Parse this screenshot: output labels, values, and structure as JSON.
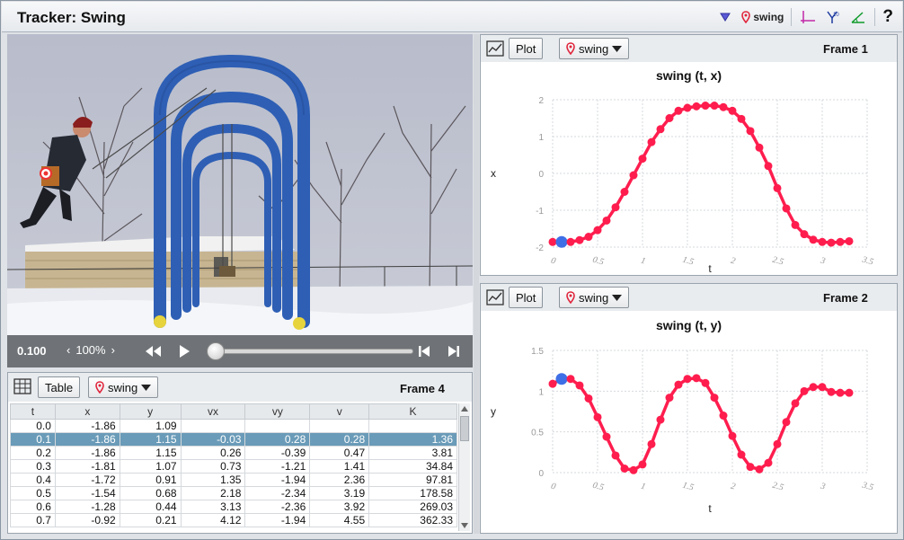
{
  "app": {
    "title": "Tracker: Swing",
    "toolbar": {
      "track_name": "swing",
      "help_label": "?"
    }
  },
  "video": {
    "time": "0.100",
    "zoom": "100%"
  },
  "table_panel": {
    "view_label": "Table",
    "track_name": "swing",
    "frame_label": "Frame 4",
    "columns": [
      "t",
      "x",
      "y",
      "vx",
      "vy",
      "v",
      "K"
    ],
    "rows": [
      [
        "0.0",
        "-1.86",
        "1.09",
        "",
        "",
        "",
        ""
      ],
      [
        "0.1",
        "-1.86",
        "1.15",
        "-0.03",
        "0.28",
        "0.28",
        "1.36"
      ],
      [
        "0.2",
        "-1.86",
        "1.15",
        "0.26",
        "-0.39",
        "0.47",
        "3.81"
      ],
      [
        "0.3",
        "-1.81",
        "1.07",
        "0.73",
        "-1.21",
        "1.41",
        "34.84"
      ],
      [
        "0.4",
        "-1.72",
        "0.91",
        "1.35",
        "-1.94",
        "2.36",
        "97.81"
      ],
      [
        "0.5",
        "-1.54",
        "0.68",
        "2.18",
        "-2.34",
        "3.19",
        "178.58"
      ],
      [
        "0.6",
        "-1.28",
        "0.44",
        "3.13",
        "-2.36",
        "3.92",
        "269.03"
      ],
      [
        "0.7",
        "-0.92",
        "0.21",
        "4.12",
        "-1.94",
        "4.55",
        "362.33"
      ]
    ],
    "selected_row": 1
  },
  "plot1": {
    "view_label": "Plot",
    "track_name": "swing",
    "frame_label": "Frame 1",
    "title": "swing (t, x)",
    "xlabel": "t",
    "ylabel": "x"
  },
  "plot2": {
    "view_label": "Plot",
    "track_name": "swing",
    "frame_label": "Frame 2",
    "title": "swing (t, y)",
    "xlabel": "t",
    "ylabel": "y"
  },
  "colors": {
    "series": "#ff1d4e",
    "selected_point": "#3f6fe6",
    "swing_blue": "#2e5fb5"
  },
  "chart_data": [
    {
      "type": "line",
      "title": "swing (t, x)",
      "xlabel": "t",
      "ylabel": "x",
      "xlim": [
        0,
        3.5
      ],
      "ylim": [
        -2,
        2
      ],
      "x_ticks": [
        "0",
        "0.5",
        "1",
        "1.5",
        "2",
        "2.5",
        "3",
        "3.5"
      ],
      "y_ticks": [
        "-2",
        "-1",
        "0",
        "1",
        "2"
      ],
      "grid": true,
      "x": [
        0.0,
        0.1,
        0.2,
        0.3,
        0.4,
        0.5,
        0.6,
        0.7,
        0.8,
        0.9,
        1.0,
        1.1,
        1.2,
        1.3,
        1.4,
        1.5,
        1.6,
        1.7,
        1.8,
        1.9,
        2.0,
        2.1,
        2.2,
        2.3,
        2.4,
        2.5,
        2.6,
        2.7,
        2.8,
        2.9,
        3.0,
        3.1,
        3.2,
        3.3
      ],
      "y": [
        -1.86,
        -1.86,
        -1.86,
        -1.81,
        -1.72,
        -1.54,
        -1.28,
        -0.92,
        -0.5,
        -0.05,
        0.4,
        0.85,
        1.2,
        1.5,
        1.7,
        1.78,
        1.82,
        1.84,
        1.84,
        1.8,
        1.7,
        1.48,
        1.15,
        0.7,
        0.2,
        -0.4,
        -0.95,
        -1.4,
        -1.65,
        -1.8,
        -1.86,
        -1.88,
        -1.86,
        -1.84
      ],
      "selected_index": 1
    },
    {
      "type": "line",
      "title": "swing (t, y)",
      "xlabel": "t",
      "ylabel": "y",
      "xlim": [
        0,
        3.5
      ],
      "ylim": [
        0,
        1.5
      ],
      "x_ticks": [
        "0",
        "0.5",
        "1",
        "1.5",
        "2",
        "2.5",
        "3",
        "3.5"
      ],
      "y_ticks": [
        "0",
        "0.5",
        "1",
        "1.5"
      ],
      "grid": true,
      "x": [
        0.0,
        0.1,
        0.2,
        0.3,
        0.4,
        0.5,
        0.6,
        0.7,
        0.8,
        0.9,
        1.0,
        1.1,
        1.2,
        1.3,
        1.4,
        1.5,
        1.6,
        1.7,
        1.8,
        1.9,
        2.0,
        2.1,
        2.2,
        2.3,
        2.4,
        2.5,
        2.6,
        2.7,
        2.8,
        2.9,
        3.0,
        3.1,
        3.2,
        3.3
      ],
      "y": [
        1.09,
        1.15,
        1.15,
        1.07,
        0.91,
        0.68,
        0.44,
        0.21,
        0.05,
        0.03,
        0.1,
        0.35,
        0.65,
        0.92,
        1.08,
        1.15,
        1.16,
        1.1,
        0.92,
        0.7,
        0.45,
        0.22,
        0.07,
        0.04,
        0.12,
        0.35,
        0.62,
        0.85,
        1.0,
        1.05,
        1.05,
        0.99,
        0.98,
        0.98
      ],
      "selected_index": 1
    }
  ]
}
